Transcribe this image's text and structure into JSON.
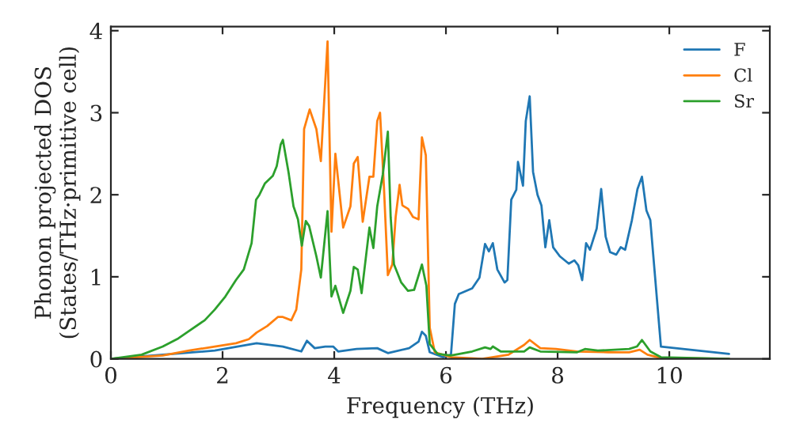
{
  "chart_data": {
    "type": "line",
    "xlabel": "Frequency (THz)",
    "ylabel": "Phonon projected DOS\n(States/THz·primitive cell)",
    "xlim": [
      0,
      11.8
    ],
    "ylim": [
      0,
      4.05
    ],
    "xticks": [
      0,
      2,
      4,
      6,
      8,
      10
    ],
    "yticks": [
      0,
      1,
      2,
      3,
      4
    ],
    "grid": false,
    "legend": "top right",
    "marker": "none",
    "line_style": "solid",
    "series": [
      {
        "name": "F",
        "color": "#1f77b4",
        "x": [
          0,
          0.93,
          1.86,
          2.61,
          3.08,
          3.41,
          3.51,
          3.65,
          3.84,
          3.98,
          4.07,
          4.4,
          4.77,
          4.96,
          5.34,
          5.51,
          5.57,
          5.64,
          5.71,
          5.95,
          6.09,
          6.16,
          6.23,
          6.47,
          6.6,
          6.7,
          6.77,
          6.84,
          6.92,
          7.05,
          7.1,
          7.17,
          7.26,
          7.29,
          7.38,
          7.43,
          7.5,
          7.56,
          7.64,
          7.71,
          7.78,
          7.85,
          7.92,
          8.04,
          8.2,
          8.3,
          8.37,
          8.44,
          8.51,
          8.58,
          8.7,
          8.78,
          8.86,
          8.94,
          9.05,
          9.13,
          9.21,
          9.33,
          9.43,
          9.51,
          9.59,
          9.66,
          9.85,
          11.07
        ],
        "values": [
          0,
          0.05,
          0.1,
          0.19,
          0.15,
          0.09,
          0.22,
          0.13,
          0.15,
          0.15,
          0.09,
          0.12,
          0.13,
          0.07,
          0.13,
          0.21,
          0.33,
          0.28,
          0.08,
          0.02,
          0.05,
          0.67,
          0.79,
          0.86,
          0.99,
          1.4,
          1.31,
          1.41,
          1.09,
          0.93,
          0.96,
          1.94,
          2.06,
          2.4,
          2.11,
          2.9,
          3.2,
          2.28,
          2.0,
          1.87,
          1.36,
          1.69,
          1.36,
          1.25,
          1.16,
          1.2,
          1.14,
          0.96,
          1.41,
          1.33,
          1.59,
          2.07,
          1.49,
          1.3,
          1.27,
          1.36,
          1.33,
          1.69,
          2.07,
          2.22,
          1.81,
          1.69,
          0.15,
          0.06
        ]
      },
      {
        "name": "Cl",
        "color": "#ff7f0e",
        "x": [
          0,
          0.93,
          1.4,
          1.86,
          2.24,
          2.47,
          2.61,
          2.8,
          2.99,
          3.08,
          3.23,
          3.32,
          3.41,
          3.46,
          3.56,
          3.68,
          3.76,
          3.88,
          3.95,
          4.02,
          4.16,
          4.29,
          4.35,
          4.42,
          4.51,
          4.63,
          4.7,
          4.77,
          4.82,
          4.89,
          4.96,
          5.04,
          5.1,
          5.17,
          5.22,
          5.32,
          5.41,
          5.51,
          5.57,
          5.64,
          5.71,
          5.8,
          6.09,
          6.65,
          7.12,
          7.4,
          7.5,
          7.69,
          7.97,
          8.35,
          8.91,
          9.28,
          9.47,
          9.61,
          9.85,
          11.07
        ],
        "values": [
          0,
          0.04,
          0.1,
          0.15,
          0.19,
          0.24,
          0.32,
          0.4,
          0.51,
          0.51,
          0.47,
          0.6,
          1.09,
          2.8,
          3.04,
          2.8,
          2.41,
          3.87,
          1.55,
          2.5,
          1.6,
          1.86,
          2.38,
          2.46,
          1.67,
          2.22,
          2.22,
          2.9,
          3.0,
          2.09,
          1.02,
          1.15,
          1.73,
          2.12,
          1.87,
          1.83,
          1.73,
          1.7,
          2.7,
          2.48,
          0.38,
          0.08,
          0.02,
          0,
          0.05,
          0.17,
          0.23,
          0.13,
          0.12,
          0.09,
          0.08,
          0.08,
          0.11,
          0.05,
          0.01,
          0
        ]
      },
      {
        "name": "Sr",
        "color": "#2ca02c",
        "x": [
          0,
          0.55,
          0.93,
          1.21,
          1.4,
          1.68,
          1.86,
          2.05,
          2.24,
          2.38,
          2.52,
          2.6,
          2.66,
          2.76,
          2.9,
          2.97,
          3.04,
          3.08,
          3.18,
          3.27,
          3.35,
          3.42,
          3.49,
          3.55,
          3.68,
          3.76,
          3.88,
          3.95,
          4.02,
          4.16,
          4.29,
          4.35,
          4.42,
          4.49,
          4.63,
          4.7,
          4.77,
          4.87,
          4.96,
          5.01,
          5.07,
          5.2,
          5.32,
          5.43,
          5.57,
          5.65,
          5.71,
          5.85,
          6.09,
          6.47,
          6.7,
          6.8,
          6.84,
          6.98,
          7.4,
          7.5,
          7.69,
          8.35,
          8.49,
          8.72,
          9.28,
          9.42,
          9.51,
          9.66,
          9.85,
          11.07
        ],
        "values": [
          0,
          0.05,
          0.15,
          0.25,
          0.34,
          0.47,
          0.6,
          0.76,
          0.96,
          1.09,
          1.41,
          1.94,
          2.0,
          2.14,
          2.23,
          2.35,
          2.61,
          2.67,
          2.28,
          1.86,
          1.7,
          1.38,
          1.68,
          1.62,
          1.25,
          0.99,
          1.8,
          0.76,
          0.89,
          0.56,
          0.83,
          1.12,
          1.09,
          0.8,
          1.6,
          1.35,
          1.86,
          2.25,
          2.77,
          1.73,
          1.15,
          0.93,
          0.83,
          0.84,
          1.15,
          0.89,
          0.18,
          0.06,
          0.04,
          0.09,
          0.14,
          0.12,
          0.15,
          0.09,
          0.09,
          0.14,
          0.09,
          0.08,
          0.12,
          0.1,
          0.12,
          0.15,
          0.23,
          0.09,
          0.02,
          0
        ]
      }
    ]
  }
}
